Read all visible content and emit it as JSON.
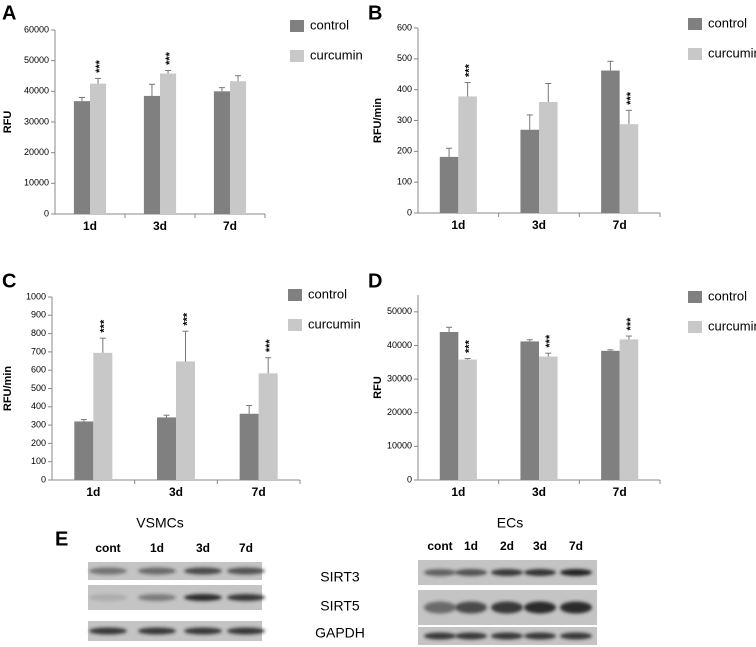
{
  "chart_data": [
    {
      "panel": "A",
      "type": "bar",
      "ylabel": "RFU",
      "categories": [
        "1d",
        "3d",
        "7d"
      ],
      "series": [
        {
          "name": "control",
          "color": "#808080",
          "values": [
            36800,
            38500,
            40000
          ],
          "errors": [
            1200,
            3800,
            1200
          ]
        },
        {
          "name": "curcumin",
          "color": "#c8c8c8",
          "values": [
            42500,
            45800,
            43300
          ],
          "errors": [
            1700,
            1000,
            1800
          ],
          "significance": [
            "***",
            "***",
            null
          ]
        }
      ],
      "ylim": [
        0,
        60000
      ],
      "yticks": [
        0,
        10000,
        20000,
        30000,
        40000,
        50000,
        60000
      ]
    },
    {
      "panel": "B",
      "type": "bar",
      "ylabel": "RFU/min",
      "categories": [
        "1d",
        "3d",
        "7d"
      ],
      "series": [
        {
          "name": "control",
          "color": "#808080",
          "values": [
            182,
            270,
            462
          ],
          "errors": [
            28,
            48,
            30
          ]
        },
        {
          "name": "curcumin",
          "color": "#c8c8c8",
          "values": [
            378,
            360,
            288
          ],
          "errors": [
            45,
            60,
            45
          ],
          "significance": [
            "***",
            null,
            "***"
          ]
        }
      ],
      "ylim": [
        0,
        600
      ],
      "yticks": [
        0,
        100,
        200,
        300,
        400,
        500,
        600
      ]
    },
    {
      "panel": "C",
      "type": "bar",
      "ylabel": "RFU/min",
      "categories": [
        "1d",
        "3d",
        "7d"
      ],
      "series": [
        {
          "name": "control",
          "color": "#808080",
          "values": [
            320,
            342,
            362
          ],
          "errors": [
            10,
            12,
            45
          ]
        },
        {
          "name": "curcumin",
          "color": "#c8c8c8",
          "values": [
            695,
            648,
            583
          ],
          "errors": [
            80,
            165,
            85
          ],
          "significance": [
            "***",
            "***",
            "***"
          ]
        }
      ],
      "ylim": [
        0,
        1000
      ],
      "yticks": [
        0,
        100,
        200,
        300,
        400,
        500,
        600,
        700,
        800,
        900,
        1000
      ]
    },
    {
      "panel": "D",
      "type": "bar",
      "ylabel": "RFU",
      "categories": [
        "1d",
        "3d",
        "7d"
      ],
      "series": [
        {
          "name": "control",
          "color": "#808080",
          "values": [
            44000,
            41200,
            38400
          ],
          "errors": [
            1400,
            500,
            300
          ]
        },
        {
          "name": "curcumin",
          "color": "#c8c8c8",
          "values": [
            35800,
            36700,
            41800
          ],
          "errors": [
            300,
            1000,
            1000
          ],
          "significance": [
            "***",
            "***",
            "***"
          ]
        }
      ],
      "ylim": [
        0,
        55000
      ],
      "yticks": [
        0,
        10000,
        20000,
        30000,
        40000,
        50000
      ]
    }
  ],
  "blot": {
    "panel": "E",
    "groups": [
      {
        "title": "VSMCs",
        "lanes": [
          "cont",
          "1d",
          "3d",
          "7d"
        ]
      },
      {
        "title": "ECs",
        "lanes": [
          "cont",
          "1d",
          "2d",
          "3d",
          "7d"
        ]
      }
    ],
    "rows": [
      "SIRT3",
      "SIRT5",
      "GAPDH"
    ]
  }
}
